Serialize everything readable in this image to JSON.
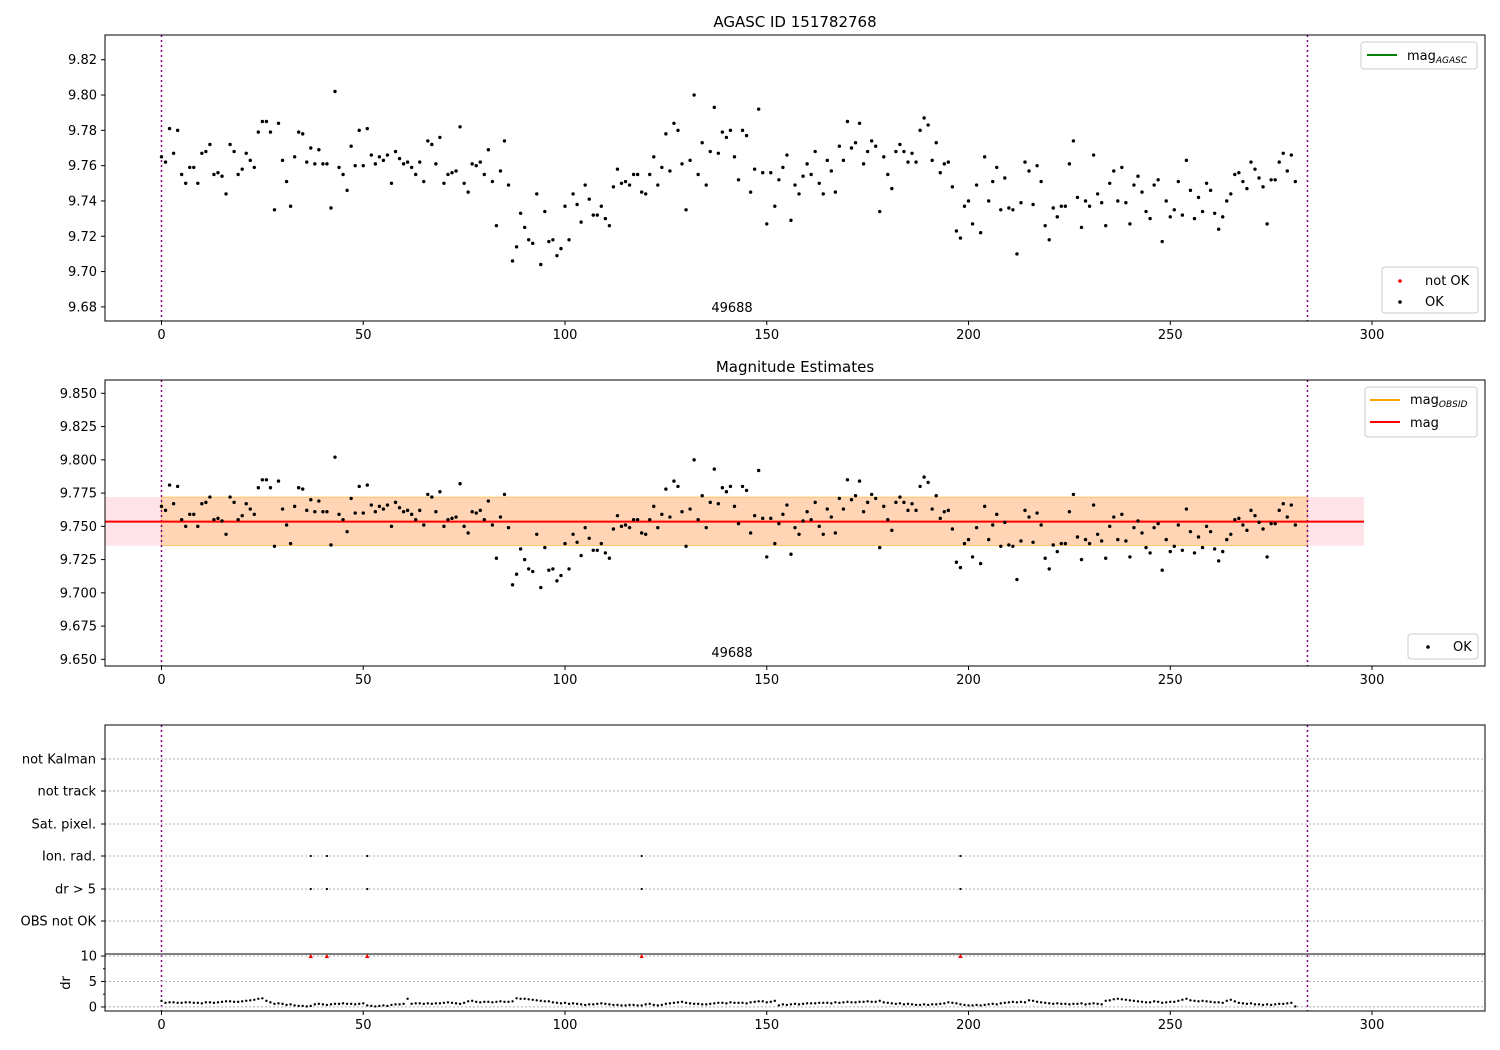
{
  "chart_data": [
    {
      "type": "scatter",
      "title": "AGASC ID 151782768",
      "xlim": [
        -14,
        328
      ],
      "ylim": [
        9.672,
        9.834
      ],
      "yticks": [
        "9.68",
        "9.70",
        "9.72",
        "9.74",
        "9.76",
        "9.78",
        "9.80",
        "9.82"
      ],
      "xticks": [
        "0",
        "50",
        "100",
        "150",
        "200",
        "250",
        "300"
      ],
      "vlines": [
        0,
        284
      ],
      "annotation": {
        "text": "49688",
        "x": 142
      },
      "legend_lines": [
        {
          "label_main": "mag",
          "label_sub": "AGASC",
          "color": "#008000"
        }
      ],
      "legend_points": [
        {
          "label": "not OK",
          "color": "#ff0000"
        },
        {
          "label": "OK",
          "color": "#000000"
        }
      ],
      "series": [
        {
          "name": "OK",
          "color": "#000000",
          "source": "mag_values"
        }
      ]
    },
    {
      "type": "scatter",
      "title": "Magnitude Estimates",
      "xlim": [
        -14,
        328
      ],
      "ylim": [
        9.645,
        9.86
      ],
      "yticks": [
        "9.650",
        "9.675",
        "9.700",
        "9.725",
        "9.750",
        "9.775",
        "9.800",
        "9.825",
        "9.850"
      ],
      "xticks": [
        "0",
        "50",
        "100",
        "150",
        "200",
        "250",
        "300"
      ],
      "vlines": [
        0,
        284
      ],
      "annotation": {
        "text": "49688",
        "x": 142
      },
      "mag_line": {
        "value": 9.7535,
        "x": [
          -14,
          298
        ],
        "color": "#ff0000"
      },
      "band_obsid": {
        "y": [
          9.7355,
          9.772
        ],
        "x": [
          -14,
          298
        ],
        "color": "#ffa500"
      },
      "band_mag": {
        "y": [
          9.7355,
          9.772
        ],
        "x": [
          -14,
          298
        ],
        "color": "#ffc0cb"
      },
      "legend_lines": [
        {
          "label_main": "mag",
          "label_sub": "OBSID",
          "color": "#ffa500"
        },
        {
          "label_main": "mag",
          "label_sub": "",
          "color": "#ff0000"
        }
      ],
      "legend_points": [
        {
          "label": "OK",
          "color": "#000000"
        }
      ],
      "series": [
        {
          "name": "OK",
          "color": "#000000",
          "source": "mag_values"
        }
      ]
    },
    {
      "type": "scatter",
      "title": "",
      "xlim": [
        -14,
        328
      ],
      "xticks": [
        "0",
        "50",
        "100",
        "150",
        "200",
        "250",
        "300"
      ],
      "vlines": [
        0,
        284
      ],
      "flag_rows": [
        "not Kalman",
        "not track",
        "Sat. pixel.",
        "Ion. rad.",
        "dr > 5",
        "OBS not OK"
      ],
      "flag_points": {
        "Ion. rad.": [
          37,
          41,
          51,
          119,
          198
        ],
        "dr > 5": [
          37,
          41,
          51,
          119,
          198
        ]
      },
      "dr": {
        "ylabel": "dr",
        "ylim": [
          -0.8,
          10.4
        ],
        "yticks": [
          "0",
          "5",
          "10"
        ],
        "outliers": {
          "x": [
            37,
            41,
            51,
            119,
            198
          ],
          "y": 10,
          "color": "#ff0000"
        }
      }
    }
  ],
  "mag_values": [
    9.765,
    9.762,
    9.781,
    9.767,
    9.78,
    9.755,
    9.75,
    9.759,
    9.759,
    9.75,
    9.767,
    9.768,
    9.772,
    9.755,
    9.756,
    9.754,
    9.744,
    9.772,
    9.768,
    9.755,
    9.758,
    9.767,
    9.763,
    9.759,
    9.779,
    9.785,
    9.785,
    9.779,
    9.735,
    9.784,
    9.763,
    9.751,
    9.737,
    9.765,
    9.779,
    9.778,
    9.762,
    9.77,
    9.761,
    9.769,
    9.761,
    9.761,
    9.736,
    9.802,
    9.759,
    9.755,
    9.746,
    9.771,
    9.76,
    9.78,
    9.76,
    9.781,
    9.766,
    9.761,
    9.765,
    9.763,
    9.766,
    9.75,
    9.768,
    9.764,
    9.761,
    9.762,
    9.759,
    9.755,
    9.762,
    9.751,
    9.774,
    9.772,
    9.761,
    9.776,
    9.75,
    9.755,
    9.756,
    9.757,
    9.782,
    9.75,
    9.745,
    9.761,
    9.76,
    9.762,
    9.755,
    9.769,
    9.751,
    9.726,
    9.757,
    9.774,
    9.749,
    9.706,
    9.714,
    9.733,
    9.725,
    9.718,
    9.716,
    9.744,
    9.704,
    9.734,
    9.717,
    9.718,
    9.709,
    9.713,
    9.737,
    9.718,
    9.744,
    9.738,
    9.728,
    9.749,
    9.741,
    9.732,
    9.732,
    9.737,
    9.73,
    9.726,
    9.748,
    9.758,
    9.75,
    9.751,
    9.749,
    9.755,
    9.755,
    9.745,
    9.744,
    9.755,
    9.765,
    9.749,
    9.759,
    9.778,
    9.757,
    9.784,
    9.78,
    9.761,
    9.735,
    9.763,
    9.8,
    9.755,
    9.773,
    9.749,
    9.768,
    9.793,
    9.767,
    9.779,
    9.776,
    9.78,
    9.765,
    9.752,
    9.78,
    9.777,
    9.745,
    9.758,
    9.792,
    9.756,
    9.727,
    9.756,
    9.737,
    9.752,
    9.759,
    9.766,
    9.729,
    9.749,
    9.744,
    9.754,
    9.761,
    9.755,
    9.768,
    9.75,
    9.744,
    9.763,
    9.757,
    9.745,
    9.771,
    9.763,
    9.785,
    9.77,
    9.773,
    9.784,
    9.761,
    9.768,
    9.774,
    9.771,
    9.734,
    9.765,
    9.755,
    9.747,
    9.768,
    9.772,
    9.768,
    9.762,
    9.767,
    9.762,
    9.78,
    9.787,
    9.783,
    9.763,
    9.773,
    9.756,
    9.761,
    9.762,
    9.748,
    9.723,
    9.719,
    9.737,
    9.74,
    9.727,
    9.749,
    9.722,
    9.765,
    9.74,
    9.751,
    9.759,
    9.735,
    9.753,
    9.736,
    9.735,
    9.71,
    9.739,
    9.762,
    9.757,
    9.738,
    9.76,
    9.751,
    9.726,
    9.718,
    9.736,
    9.731,
    9.737,
    9.737,
    9.761,
    9.774,
    9.742,
    9.725,
    9.74,
    9.737,
    9.766,
    9.744,
    9.739,
    9.726,
    9.75,
    9.757,
    9.74,
    9.759,
    9.739,
    9.727,
    9.749,
    9.754,
    9.745,
    9.734,
    9.73,
    9.749,
    9.752,
    9.717,
    9.74,
    9.731,
    9.735,
    9.751,
    9.732,
    9.763,
    9.746,
    9.73,
    9.742,
    9.734,
    9.75,
    9.746,
    9.733,
    9.724,
    9.731,
    9.74,
    9.744,
    9.755,
    9.756,
    9.751,
    9.747,
    9.762,
    9.758,
    9.753,
    9.748,
    9.727,
    9.752,
    9.752,
    9.762,
    9.767,
    9.757,
    9.766,
    9.751
  ],
  "dr_values": [
    1.2,
    0.8,
    0.9,
    0.9,
    0.8,
    0.8,
    0.9,
    0.9,
    0.8,
    0.8,
    0.7,
    0.9,
    0.9,
    0.8,
    0.9,
    1,
    1.1,
    1.1,
    1,
    1,
    1.1,
    1.2,
    1.3,
    1.4,
    1.6,
    1.7,
    1.2,
    0.9,
    0.6,
    0.7,
    0.6,
    0.4,
    0.5,
    0.3,
    0.2,
    0.2,
    0.1,
    0.2,
    0.5,
    0.6,
    0.5,
    0.4,
    0.5,
    0.6,
    0.6,
    0.7,
    0.6,
    0.6,
    0.5,
    0.6,
    0.7,
    0.3,
    0.2,
    0.1,
    0.2,
    0.3,
    0.2,
    0.4,
    0.5,
    0.5,
    0.6,
    1.6,
    0.6,
    0.7,
    0.7,
    0.6,
    0.7,
    0.6,
    0.7,
    0.7,
    0.8,
    0.9,
    0.8,
    0.7,
    0.6,
    0.8,
    1.1,
    1.2,
    1,
    0.9,
    1,
    1,
    0.9,
    1,
    1.1,
    1,
    1,
    1.1,
    1.7,
    1.6,
    1.6,
    1.5,
    1.4,
    1.3,
    1.2,
    1.1,
    1.1,
    0.9,
    0.8,
    0.7,
    0.8,
    0.6,
    0.7,
    0.6,
    0.5,
    0.4,
    0.5,
    0.5,
    0.6,
    0.7,
    0.6,
    0.5,
    0.4,
    0.4,
    0.3,
    0.3,
    0.4,
    0.4,
    0.3,
    0.3,
    0.5,
    0.6,
    0.4,
    0.3,
    0.4,
    0.6,
    0.7,
    0.8,
    0.9,
    1,
    0.8,
    0.7,
    0.6,
    0.6,
    0.5,
    0.5,
    0.6,
    0.7,
    0.8,
    0.8,
    0.7,
    0.9,
    0.8,
    0.8,
    0.8,
    0.7,
    0.9,
    1,
    1.1,
    1.1,
    0.9,
    1,
    1.2,
    0.3,
    0.5,
    0.4,
    0.5,
    0.6,
    0.5,
    0.6,
    0.7,
    0.7,
    0.7,
    0.8,
    0.8,
    0.8,
    0.7,
    0.9,
    0.8,
    0.9,
    1,
    0.9,
    0.9,
    1,
    1,
    1.1,
    1,
    1,
    1.2,
    0.9,
    0.8,
    0.7,
    0.6,
    0.7,
    0.5,
    0.6,
    0.5,
    0.4,
    0.4,
    0.5,
    0.4,
    0.5,
    0.5,
    0.6,
    0.7,
    0.9,
    0.8,
    0.7,
    0.5,
    0.4,
    0.3,
    0.3,
    0.4,
    0.3,
    0.4,
    0.5,
    0.6,
    0.5,
    0.7,
    0.8,
    0.9,
    1,
    0.9,
    1,
    0.9,
    1.3,
    1.2,
    1,
    0.9,
    0.8,
    0.7,
    0.6,
    0.7,
    0.6,
    0.6,
    0.5,
    0.6,
    0.6,
    0.7,
    0.5,
    0.6,
    0.7,
    0.6,
    0.5,
    1.2,
    1.3,
    1.5,
    1.6,
    1.5,
    1.4,
    1.3,
    1.2,
    1.1,
    1,
    0.9,
    0.9,
    1.1,
    1,
    0.8,
    0.9,
    1,
    1,
    1.2,
    1.4,
    1.6,
    1.3,
    1.2,
    1.1,
    1.2,
    1.1,
    1,
    0.9,
    0.9,
    0.8,
    1.2,
    1.4,
    1.1,
    0.8,
    0.7,
    0.6,
    0.7,
    0.5,
    0.5,
    0.4,
    0.5,
    0.4,
    0.5,
    0.6,
    0.6,
    0.7,
    0.8,
    0.1
  ]
}
